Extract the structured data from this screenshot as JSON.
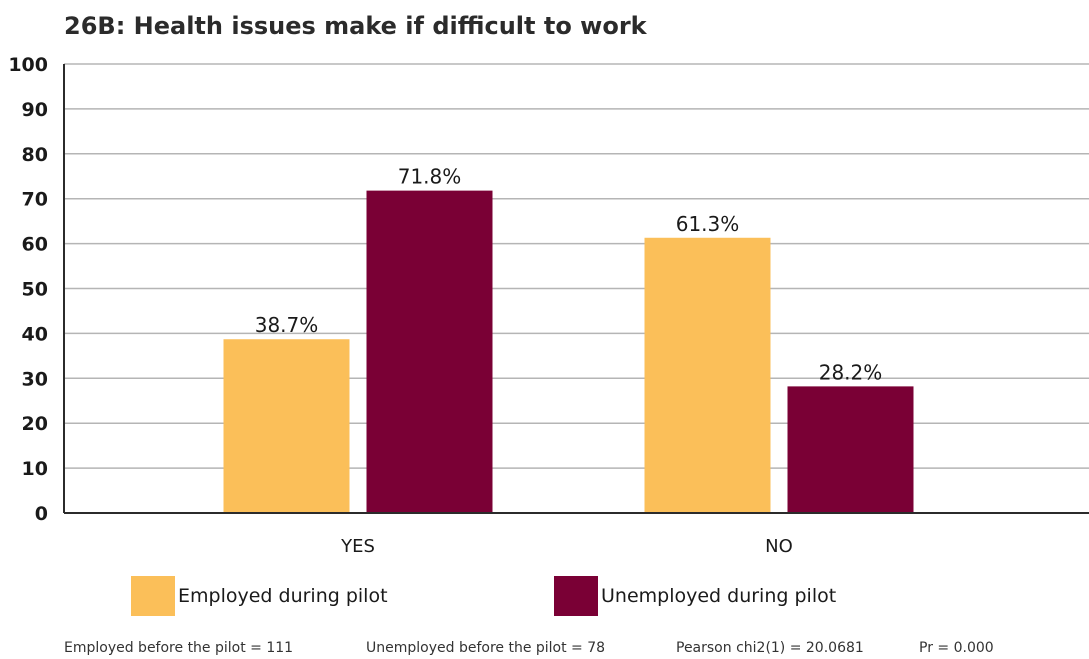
{
  "chart_data": {
    "type": "bar",
    "title": "26B: Health issues make if difficult to work",
    "categories": [
      "YES",
      "NO"
    ],
    "series": [
      {
        "name": "Employed during pilot",
        "values": [
          38.7,
          61.3
        ],
        "labels": [
          "38.7%",
          "61.3%"
        ],
        "color": "#fbbf59"
      },
      {
        "name": "Unemployed during pilot",
        "values": [
          71.8,
          28.2
        ],
        "labels": [
          "71.8%",
          "28.2%"
        ],
        "color": "#7a0035"
      }
    ],
    "ylim": [
      0,
      100
    ],
    "yticks": [
      "0",
      "10",
      "20",
      "30",
      "40",
      "50",
      "60",
      "70",
      "80",
      "90",
      "100"
    ],
    "grid": true,
    "legend_position": "bottom"
  },
  "footnotes": {
    "employed": "Employed before the pilot = 111",
    "unemployed": "Unemployed before the pilot = 78",
    "chi2": "Pearson chi2(1) = 20.0681",
    "pr": "Pr = 0.000"
  },
  "colors": {
    "grid": "#b5b5b5",
    "axis": "#2b2b2b"
  }
}
